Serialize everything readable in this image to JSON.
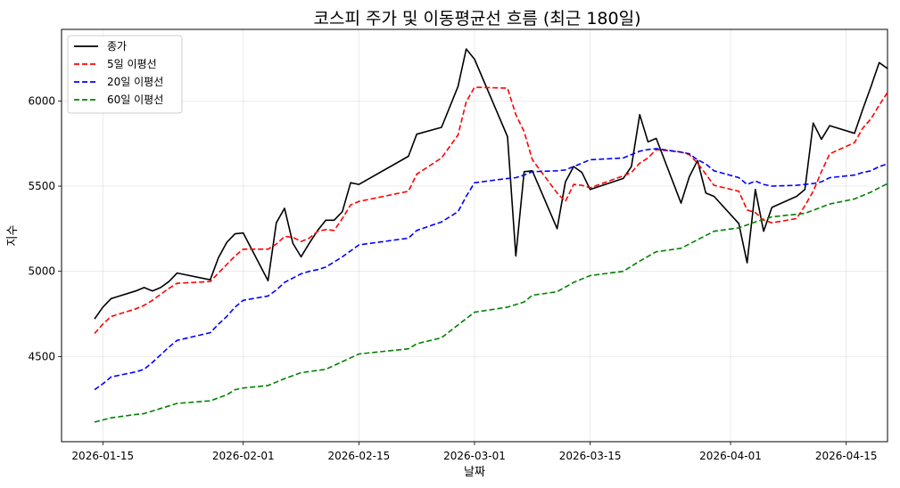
{
  "chart_data": {
    "type": "line",
    "title": "코스피 주가 및 이동평균선 흐름 (최근 180일)",
    "xlabel": "날짜",
    "ylabel": "지수",
    "ylim": [
      4000,
      6420
    ],
    "xlim": [
      "2026-01-10",
      "2026-04-20"
    ],
    "grid": true,
    "legend_position": "top-left",
    "x_ticks": [
      "2026-01-15",
      "2026-02-01",
      "2026-02-15",
      "2026-03-01",
      "2026-03-15",
      "2026-04-01",
      "2026-04-15"
    ],
    "y_ticks": [
      4500,
      5000,
      5500,
      6000
    ],
    "series": [
      {
        "name": "종가",
        "color": "#000000",
        "dash": "solid",
        "points": [
          [
            "2026-01-14",
            4720
          ],
          [
            "2026-01-15",
            4790
          ],
          [
            "2026-01-16",
            4840
          ],
          [
            "2026-01-19",
            4885
          ],
          [
            "2026-01-20",
            4905
          ],
          [
            "2026-01-21",
            4885
          ],
          [
            "2026-01-22",
            4905
          ],
          [
            "2026-01-23",
            4940
          ],
          [
            "2026-01-24",
            4990
          ],
          [
            "2026-01-28",
            4950
          ],
          [
            "2026-01-29",
            5080
          ],
          [
            "2026-01-30",
            5170
          ],
          [
            "2026-01-31",
            5220
          ],
          [
            "2026-02-01",
            5225
          ],
          [
            "2026-02-04",
            4945
          ],
          [
            "2026-02-05",
            5285
          ],
          [
            "2026-02-06",
            5370
          ],
          [
            "2026-02-07",
            5165
          ],
          [
            "2026-02-08",
            5085
          ],
          [
            "2026-02-09",
            5165
          ],
          [
            "2026-02-10",
            5240
          ],
          [
            "2026-02-11",
            5300
          ],
          [
            "2026-02-12",
            5300
          ],
          [
            "2026-02-13",
            5350
          ],
          [
            "2026-02-14",
            5520
          ],
          [
            "2026-02-15",
            5510
          ],
          [
            "2026-02-21",
            5675
          ],
          [
            "2026-02-22",
            5805
          ],
          [
            "2026-02-25",
            5845
          ],
          [
            "2026-02-27",
            6085
          ],
          [
            "2026-02-28",
            6305
          ],
          [
            "2026-03-01",
            6245
          ],
          [
            "2026-03-05",
            5790
          ],
          [
            "2026-03-06",
            5090
          ],
          [
            "2026-03-07",
            5585
          ],
          [
            "2026-03-08",
            5590
          ],
          [
            "2026-03-11",
            5250
          ],
          [
            "2026-03-12",
            5525
          ],
          [
            "2026-03-13",
            5615
          ],
          [
            "2026-03-14",
            5580
          ],
          [
            "2026-03-15",
            5480
          ],
          [
            "2026-03-19",
            5545
          ],
          [
            "2026-03-20",
            5615
          ],
          [
            "2026-03-21",
            5920
          ],
          [
            "2026-03-22",
            5760
          ],
          [
            "2026-03-23",
            5780
          ],
          [
            "2026-03-26",
            5400
          ],
          [
            "2026-03-27",
            5555
          ],
          [
            "2026-03-28",
            5650
          ],
          [
            "2026-03-29",
            5460
          ],
          [
            "2026-03-30",
            5440
          ],
          [
            "2026-04-02",
            5280
          ],
          [
            "2026-04-03",
            5050
          ],
          [
            "2026-04-04",
            5480
          ],
          [
            "2026-04-05",
            5235
          ],
          [
            "2026-04-06",
            5375
          ],
          [
            "2026-04-09",
            5440
          ],
          [
            "2026-04-10",
            5480
          ],
          [
            "2026-04-11",
            5870
          ],
          [
            "2026-04-12",
            5775
          ],
          [
            "2026-04-13",
            5855
          ],
          [
            "2026-04-16",
            5810
          ],
          [
            "2026-04-17",
            5950
          ],
          [
            "2026-04-18",
            6085
          ],
          [
            "2026-04-19",
            6225
          ],
          [
            "2026-04-20",
            6190
          ]
        ]
      },
      {
        "name": "5일 이평선",
        "color": "#ff0000",
        "dash": "dashed",
        "points": [
          [
            "2026-01-14",
            4635
          ],
          [
            "2026-01-15",
            4690
          ],
          [
            "2026-01-16",
            4735
          ],
          [
            "2026-01-19",
            4780
          ],
          [
            "2026-01-20",
            4800
          ],
          [
            "2026-01-21",
            4830
          ],
          [
            "2026-01-22",
            4865
          ],
          [
            "2026-01-23",
            4900
          ],
          [
            "2026-01-24",
            4930
          ],
          [
            "2026-01-28",
            4940
          ],
          [
            "2026-01-29",
            4990
          ],
          [
            "2026-01-30",
            5040
          ],
          [
            "2026-01-31",
            5090
          ],
          [
            "2026-02-01",
            5130
          ],
          [
            "2026-02-04",
            5130
          ],
          [
            "2026-02-05",
            5160
          ],
          [
            "2026-02-06",
            5205
          ],
          [
            "2026-02-07",
            5200
          ],
          [
            "2026-02-08",
            5175
          ],
          [
            "2026-02-09",
            5195
          ],
          [
            "2026-02-10",
            5235
          ],
          [
            "2026-02-11",
            5245
          ],
          [
            "2026-02-12",
            5240
          ],
          [
            "2026-02-13",
            5310
          ],
          [
            "2026-02-14",
            5390
          ],
          [
            "2026-02-15",
            5410
          ],
          [
            "2026-02-21",
            5470
          ],
          [
            "2026-02-22",
            5570
          ],
          [
            "2026-02-25",
            5665
          ],
          [
            "2026-02-27",
            5800
          ],
          [
            "2026-02-28",
            5995
          ],
          [
            "2026-03-01",
            6080
          ],
          [
            "2026-03-05",
            6075
          ],
          [
            "2026-03-06",
            5920
          ],
          [
            "2026-03-07",
            5820
          ],
          [
            "2026-03-08",
            5655
          ],
          [
            "2026-03-11",
            5460
          ],
          [
            "2026-03-12",
            5410
          ],
          [
            "2026-03-13",
            5510
          ],
          [
            "2026-03-14",
            5505
          ],
          [
            "2026-03-15",
            5490
          ],
          [
            "2026-03-19",
            5560
          ],
          [
            "2026-03-20",
            5580
          ],
          [
            "2026-03-21",
            5635
          ],
          [
            "2026-03-22",
            5665
          ],
          [
            "2026-03-23",
            5715
          ],
          [
            "2026-03-26",
            5700
          ],
          [
            "2026-03-27",
            5685
          ],
          [
            "2026-03-28",
            5635
          ],
          [
            "2026-03-29",
            5570
          ],
          [
            "2026-03-30",
            5505
          ],
          [
            "2026-04-02",
            5470
          ],
          [
            "2026-04-03",
            5360
          ],
          [
            "2026-04-04",
            5345
          ],
          [
            "2026-04-05",
            5300
          ],
          [
            "2026-04-06",
            5285
          ],
          [
            "2026-04-09",
            5310
          ],
          [
            "2026-04-10",
            5385
          ],
          [
            "2026-04-11",
            5470
          ],
          [
            "2026-04-12",
            5585
          ],
          [
            "2026-04-13",
            5690
          ],
          [
            "2026-04-16",
            5755
          ],
          [
            "2026-04-17",
            5840
          ],
          [
            "2026-04-18",
            5895
          ],
          [
            "2026-04-19",
            5975
          ],
          [
            "2026-04-20",
            6050
          ]
        ]
      },
      {
        "name": "20일 이평선",
        "color": "#0000ff",
        "dash": "dashed",
        "points": [
          [
            "2026-01-14",
            4305
          ],
          [
            "2026-01-15",
            4340
          ],
          [
            "2026-01-16",
            4380
          ],
          [
            "2026-01-19",
            4410
          ],
          [
            "2026-01-20",
            4425
          ],
          [
            "2026-01-21",
            4465
          ],
          [
            "2026-01-22",
            4510
          ],
          [
            "2026-01-23",
            4555
          ],
          [
            "2026-01-24",
            4595
          ],
          [
            "2026-01-28",
            4640
          ],
          [
            "2026-01-29",
            4690
          ],
          [
            "2026-01-30",
            4735
          ],
          [
            "2026-01-31",
            4790
          ],
          [
            "2026-02-01",
            4830
          ],
          [
            "2026-02-04",
            4855
          ],
          [
            "2026-02-05",
            4890
          ],
          [
            "2026-02-06",
            4935
          ],
          [
            "2026-02-07",
            4960
          ],
          [
            "2026-02-08",
            4985
          ],
          [
            "2026-02-09",
            5000
          ],
          [
            "2026-02-10",
            5010
          ],
          [
            "2026-02-11",
            5025
          ],
          [
            "2026-02-12",
            5055
          ],
          [
            "2026-02-13",
            5085
          ],
          [
            "2026-02-14",
            5120
          ],
          [
            "2026-02-15",
            5155
          ],
          [
            "2026-02-21",
            5195
          ],
          [
            "2026-02-22",
            5240
          ],
          [
            "2026-02-25",
            5290
          ],
          [
            "2026-02-27",
            5350
          ],
          [
            "2026-02-28",
            5440
          ],
          [
            "2026-03-01",
            5520
          ],
          [
            "2026-03-05",
            5545
          ],
          [
            "2026-03-06",
            5550
          ],
          [
            "2026-03-07",
            5565
          ],
          [
            "2026-03-08",
            5585
          ],
          [
            "2026-03-11",
            5590
          ],
          [
            "2026-03-12",
            5595
          ],
          [
            "2026-03-13",
            5615
          ],
          [
            "2026-03-14",
            5635
          ],
          [
            "2026-03-15",
            5655
          ],
          [
            "2026-03-19",
            5665
          ],
          [
            "2026-03-20",
            5685
          ],
          [
            "2026-03-21",
            5705
          ],
          [
            "2026-03-22",
            5715
          ],
          [
            "2026-03-23",
            5720
          ],
          [
            "2026-03-26",
            5700
          ],
          [
            "2026-03-27",
            5690
          ],
          [
            "2026-03-28",
            5655
          ],
          [
            "2026-03-29",
            5630
          ],
          [
            "2026-03-30",
            5590
          ],
          [
            "2026-04-02",
            5550
          ],
          [
            "2026-04-03",
            5510
          ],
          [
            "2026-04-04",
            5530
          ],
          [
            "2026-04-05",
            5510
          ],
          [
            "2026-04-06",
            5500
          ],
          [
            "2026-04-09",
            5505
          ],
          [
            "2026-04-10",
            5510
          ],
          [
            "2026-04-11",
            5515
          ],
          [
            "2026-04-12",
            5525
          ],
          [
            "2026-04-13",
            5550
          ],
          [
            "2026-04-16",
            5565
          ],
          [
            "2026-04-17",
            5580
          ],
          [
            "2026-04-18",
            5590
          ],
          [
            "2026-04-19",
            5615
          ],
          [
            "2026-04-20",
            5630
          ]
        ]
      },
      {
        "name": "60일 이평선",
        "color": "#008000",
        "dash": "dashed",
        "points": [
          [
            "2026-01-14",
            4115
          ],
          [
            "2026-01-16",
            4140
          ],
          [
            "2026-01-19",
            4160
          ],
          [
            "2026-01-20",
            4165
          ],
          [
            "2026-01-22",
            4195
          ],
          [
            "2026-01-24",
            4225
          ],
          [
            "2026-01-28",
            4240
          ],
          [
            "2026-01-30",
            4275
          ],
          [
            "2026-01-31",
            4305
          ],
          [
            "2026-02-01",
            4315
          ],
          [
            "2026-02-04",
            4330
          ],
          [
            "2026-02-06",
            4370
          ],
          [
            "2026-02-08",
            4405
          ],
          [
            "2026-02-11",
            4425
          ],
          [
            "2026-02-13",
            4470
          ],
          [
            "2026-02-15",
            4515
          ],
          [
            "2026-02-21",
            4545
          ],
          [
            "2026-02-22",
            4575
          ],
          [
            "2026-02-25",
            4610
          ],
          [
            "2026-02-27",
            4685
          ],
          [
            "2026-03-01",
            4760
          ],
          [
            "2026-03-05",
            4790
          ],
          [
            "2026-03-07",
            4820
          ],
          [
            "2026-03-08",
            4860
          ],
          [
            "2026-03-11",
            4880
          ],
          [
            "2026-03-13",
            4935
          ],
          [
            "2026-03-15",
            4975
          ],
          [
            "2026-03-19",
            5000
          ],
          [
            "2026-03-21",
            5060
          ],
          [
            "2026-03-23",
            5115
          ],
          [
            "2026-03-26",
            5135
          ],
          [
            "2026-03-28",
            5185
          ],
          [
            "2026-03-30",
            5235
          ],
          [
            "2026-04-02",
            5255
          ],
          [
            "2026-04-04",
            5290
          ],
          [
            "2026-04-06",
            5320
          ],
          [
            "2026-04-10",
            5340
          ],
          [
            "2026-04-13",
            5395
          ],
          [
            "2026-04-16",
            5425
          ],
          [
            "2026-04-18",
            5465
          ],
          [
            "2026-04-20",
            5515
          ]
        ]
      }
    ]
  }
}
